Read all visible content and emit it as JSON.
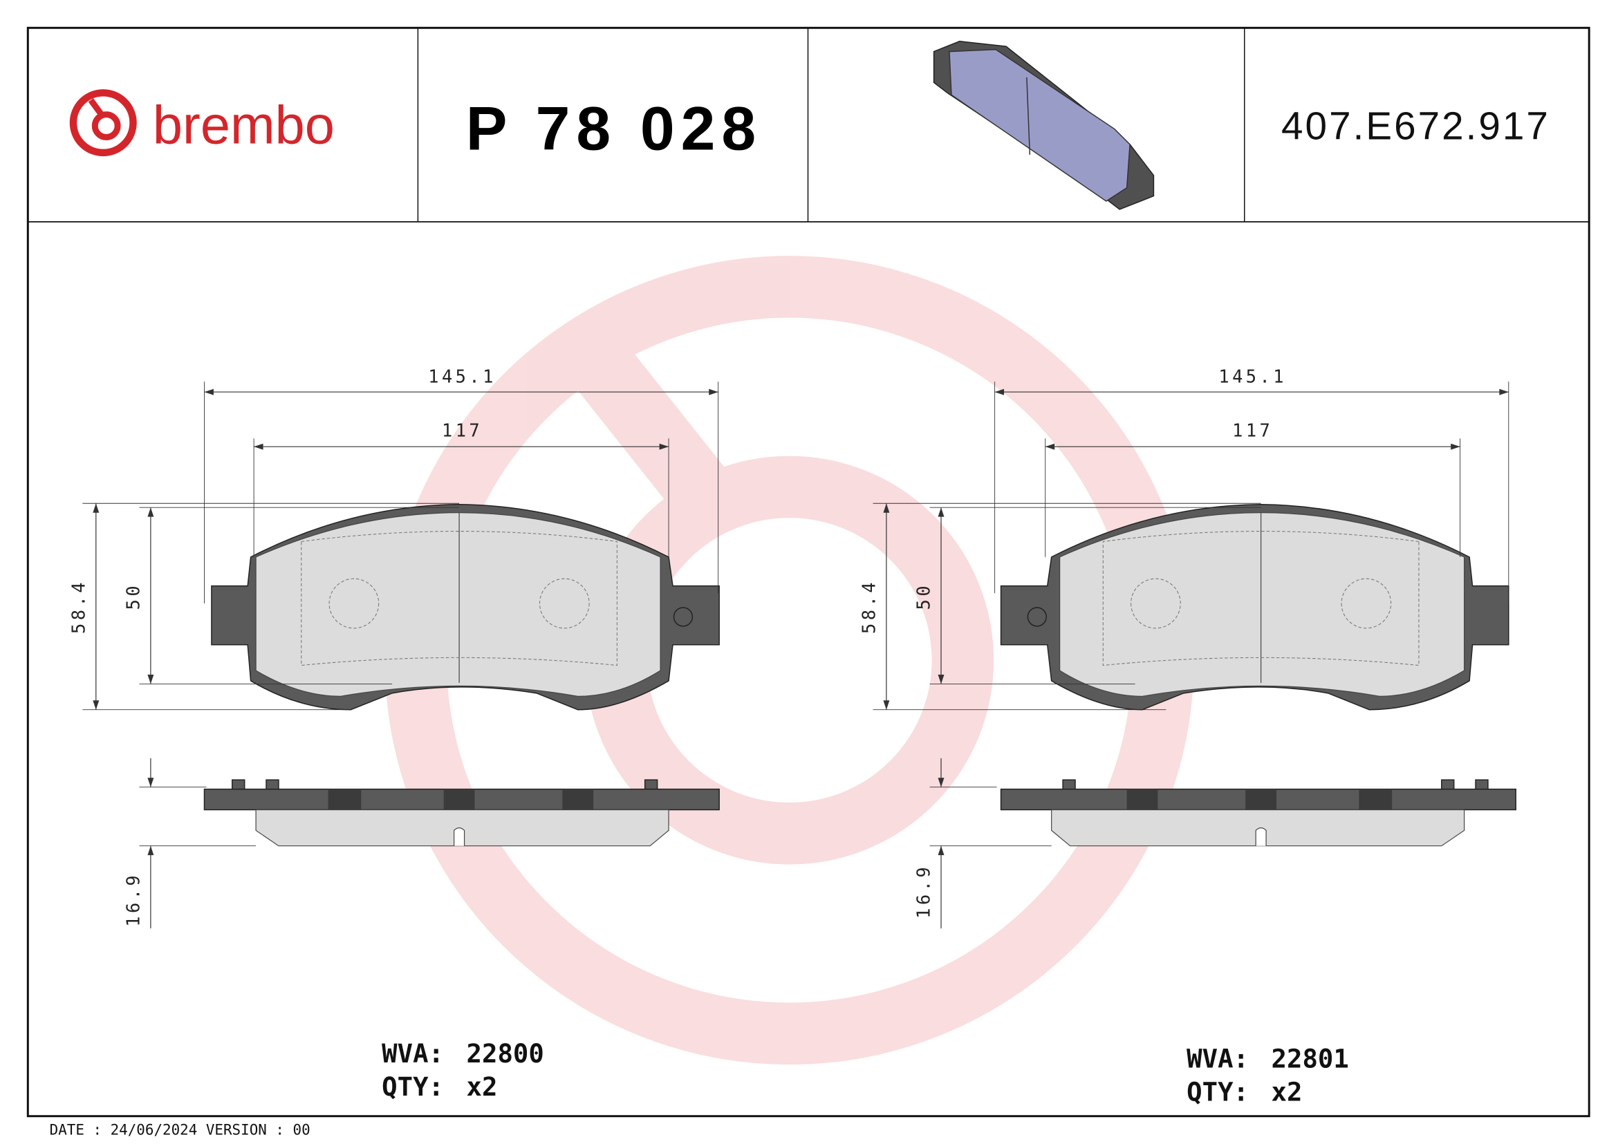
{
  "header": {
    "brand": "brembo",
    "part_number": "P 78 028",
    "code": "407.E672.917"
  },
  "drawings": [
    {
      "width_overall": "145.1",
      "width_inner": "117",
      "height_overall": "58.4",
      "height_inner": "50",
      "thickness": "16.9",
      "wva_label": "WVA:",
      "wva": "22800",
      "qty_label": "QTY:",
      "qty": "x2"
    },
    {
      "width_overall": "145.1",
      "width_inner": "117",
      "height_overall": "58.4",
      "height_inner": "50",
      "thickness": "16.9",
      "wva_label": "WVA:",
      "wva": "22801",
      "qty_label": "QTY:",
      "qty": "x2"
    }
  ],
  "footer": "DATE : 24/06/2024 VERSION : 00"
}
